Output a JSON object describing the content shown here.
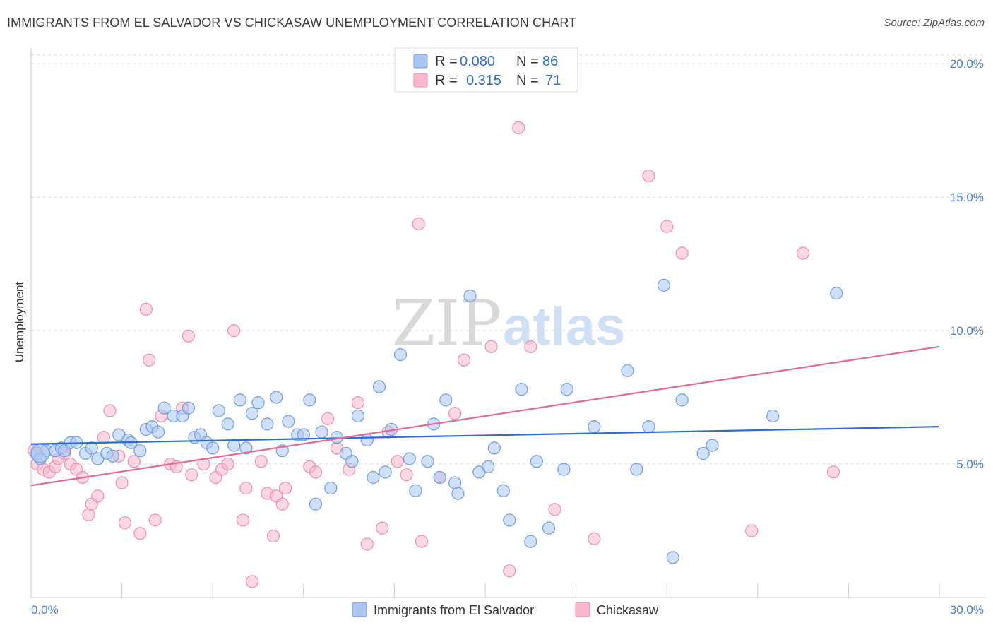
{
  "header": {
    "title": "IMMIGRANTS FROM EL SALVADOR VS CHICKASAW UNEMPLOYMENT CORRELATION CHART",
    "source": "Source: ZipAtlas.com"
  },
  "watermark": {
    "zip": "ZIP",
    "atlas": "atlas"
  },
  "colors": {
    "blue_fill": "#a9c6f2",
    "blue_stroke": "#6f9fe0",
    "blue_line": "#2a6fd0",
    "pink_fill": "#f7b8cb",
    "pink_stroke": "#ee8fae",
    "pink_line": "#e46a96",
    "tick_text": "#4a7fd0",
    "grid": "#dcdcdc"
  },
  "legend": {
    "rows": [
      {
        "r_label": "R =",
        "r_value": "0.080",
        "n_label": "N =",
        "n_value": "86"
      },
      {
        "r_label": "R =",
        "r_value": "0.315",
        "n_label": "N =",
        "n_value": "71"
      }
    ]
  },
  "chart_data": {
    "type": "scatter",
    "title": "IMMIGRANTS FROM EL SALVADOR VS CHICKASAW UNEMPLOYMENT CORRELATION CHART",
    "xlabel": "",
    "ylabel": "Unemployment",
    "xlim": [
      0,
      30
    ],
    "ylim": [
      0,
      20.8
    ],
    "y_ticks": [
      5,
      10,
      15,
      20
    ],
    "y_tick_labels": [
      "5.0%",
      "10.0%",
      "15.0%",
      "20.0%"
    ],
    "x_tick_labels": [
      "0.0%",
      "30.0%"
    ],
    "grid": true,
    "legend_position": "top-center",
    "series": [
      {
        "name": "Immigrants from El Salvador",
        "color": "#a9c6f2",
        "trend": [
          [
            0,
            5.75
          ],
          [
            30,
            6.4
          ]
        ],
        "points": [
          [
            0.2,
            5.4
          ],
          [
            0.5,
            5.5
          ],
          [
            0.8,
            5.5
          ],
          [
            1.0,
            5.6
          ],
          [
            1.3,
            5.8
          ],
          [
            1.5,
            5.8
          ],
          [
            1.8,
            5.4
          ],
          [
            2.0,
            5.6
          ],
          [
            2.2,
            5.2
          ],
          [
            2.5,
            5.4
          ],
          [
            2.7,
            5.3
          ],
          [
            2.9,
            6.1
          ],
          [
            3.2,
            5.9
          ],
          [
            3.3,
            5.8
          ],
          [
            3.6,
            5.5
          ],
          [
            3.8,
            6.3
          ],
          [
            4.0,
            6.4
          ],
          [
            4.2,
            6.2
          ],
          [
            4.4,
            7.1
          ],
          [
            4.7,
            6.8
          ],
          [
            5.0,
            6.8
          ],
          [
            5.2,
            7.1
          ],
          [
            5.4,
            6.0
          ],
          [
            5.6,
            6.1
          ],
          [
            5.8,
            5.8
          ],
          [
            6.0,
            5.6
          ],
          [
            6.2,
            7.0
          ],
          [
            6.5,
            6.5
          ],
          [
            6.7,
            5.7
          ],
          [
            6.9,
            7.4
          ],
          [
            7.1,
            5.6
          ],
          [
            7.3,
            6.9
          ],
          [
            7.5,
            7.3
          ],
          [
            7.8,
            6.5
          ],
          [
            8.1,
            7.5
          ],
          [
            8.3,
            5.5
          ],
          [
            8.5,
            6.6
          ],
          [
            8.8,
            6.1
          ],
          [
            9.0,
            6.1
          ],
          [
            9.2,
            7.4
          ],
          [
            9.4,
            3.5
          ],
          [
            9.6,
            6.2
          ],
          [
            9.9,
            4.1
          ],
          [
            10.1,
            6.0
          ],
          [
            10.4,
            5.4
          ],
          [
            10.6,
            5.1
          ],
          [
            10.8,
            6.8
          ],
          [
            11.1,
            5.9
          ],
          [
            11.3,
            4.5
          ],
          [
            11.5,
            7.9
          ],
          [
            11.7,
            4.7
          ],
          [
            11.9,
            6.3
          ],
          [
            12.2,
            9.1
          ],
          [
            12.5,
            5.2
          ],
          [
            12.7,
            4.0
          ],
          [
            13.1,
            5.1
          ],
          [
            13.3,
            6.5
          ],
          [
            13.5,
            4.5
          ],
          [
            13.7,
            7.4
          ],
          [
            14.0,
            4.3
          ],
          [
            14.1,
            3.9
          ],
          [
            14.5,
            11.3
          ],
          [
            14.8,
            4.7
          ],
          [
            15.1,
            4.9
          ],
          [
            15.3,
            5.6
          ],
          [
            15.6,
            4.0
          ],
          [
            15.8,
            2.9
          ],
          [
            16.2,
            7.8
          ],
          [
            16.5,
            2.1
          ],
          [
            16.7,
            5.1
          ],
          [
            17.1,
            2.6
          ],
          [
            17.6,
            4.8
          ],
          [
            17.7,
            7.8
          ],
          [
            18.6,
            6.4
          ],
          [
            19.7,
            8.5
          ],
          [
            20.0,
            4.8
          ],
          [
            20.4,
            6.4
          ],
          [
            20.9,
            11.7
          ],
          [
            21.2,
            1.5
          ],
          [
            21.5,
            7.4
          ],
          [
            22.2,
            5.4
          ],
          [
            22.5,
            5.7
          ],
          [
            24.5,
            6.8
          ],
          [
            26.6,
            11.4
          ],
          [
            0.3,
            5.2
          ],
          [
            1.1,
            5.5
          ]
        ]
      },
      {
        "name": "Chickasaw",
        "color": "#f7b8cb",
        "trend": [
          [
            0,
            4.2
          ],
          [
            30,
            9.4
          ]
        ],
        "points": [
          [
            0.2,
            5.0
          ],
          [
            0.4,
            4.8
          ],
          [
            0.6,
            4.7
          ],
          [
            0.8,
            4.9
          ],
          [
            0.9,
            5.2
          ],
          [
            1.1,
            5.4
          ],
          [
            1.3,
            5.0
          ],
          [
            1.5,
            4.8
          ],
          [
            1.7,
            4.5
          ],
          [
            1.9,
            3.1
          ],
          [
            2.0,
            3.5
          ],
          [
            2.2,
            3.8
          ],
          [
            2.4,
            6.0
          ],
          [
            2.6,
            7.0
          ],
          [
            2.9,
            5.3
          ],
          [
            3.0,
            4.3
          ],
          [
            3.1,
            2.8
          ],
          [
            3.4,
            5.1
          ],
          [
            3.6,
            2.4
          ],
          [
            3.8,
            10.8
          ],
          [
            3.9,
            8.9
          ],
          [
            4.1,
            2.9
          ],
          [
            4.3,
            6.8
          ],
          [
            4.6,
            5.0
          ],
          [
            4.8,
            4.9
          ],
          [
            5.0,
            7.1
          ],
          [
            5.2,
            9.8
          ],
          [
            5.3,
            4.6
          ],
          [
            5.7,
            5.0
          ],
          [
            6.1,
            4.5
          ],
          [
            6.3,
            4.8
          ],
          [
            6.5,
            5.0
          ],
          [
            6.7,
            10.0
          ],
          [
            7.0,
            2.9
          ],
          [
            7.1,
            4.1
          ],
          [
            7.3,
            0.6
          ],
          [
            7.6,
            5.1
          ],
          [
            7.8,
            3.9
          ],
          [
            8.0,
            2.3
          ],
          [
            8.1,
            3.8
          ],
          [
            8.3,
            3.5
          ],
          [
            8.4,
            4.1
          ],
          [
            9.2,
            4.9
          ],
          [
            9.4,
            4.7
          ],
          [
            9.8,
            6.7
          ],
          [
            10.1,
            5.6
          ],
          [
            10.5,
            4.8
          ],
          [
            10.8,
            7.3
          ],
          [
            11.1,
            2.0
          ],
          [
            11.6,
            2.6
          ],
          [
            11.8,
            6.2
          ],
          [
            12.1,
            5.1
          ],
          [
            12.4,
            4.6
          ],
          [
            12.8,
            14.0
          ],
          [
            12.9,
            2.1
          ],
          [
            13.5,
            4.5
          ],
          [
            14.0,
            6.9
          ],
          [
            14.3,
            8.9
          ],
          [
            15.2,
            9.4
          ],
          [
            15.8,
            1.0
          ],
          [
            16.1,
            17.6
          ],
          [
            16.5,
            9.4
          ],
          [
            17.3,
            3.3
          ],
          [
            18.6,
            2.2
          ],
          [
            20.4,
            15.8
          ],
          [
            21.0,
            13.9
          ],
          [
            21.5,
            12.9
          ],
          [
            23.8,
            2.5
          ],
          [
            25.5,
            12.9
          ],
          [
            26.5,
            4.7
          ],
          [
            0.1,
            5.5
          ]
        ]
      }
    ]
  },
  "bottom_legend": {
    "items": [
      "Immigrants from El Salvador",
      "Chickasaw"
    ]
  }
}
